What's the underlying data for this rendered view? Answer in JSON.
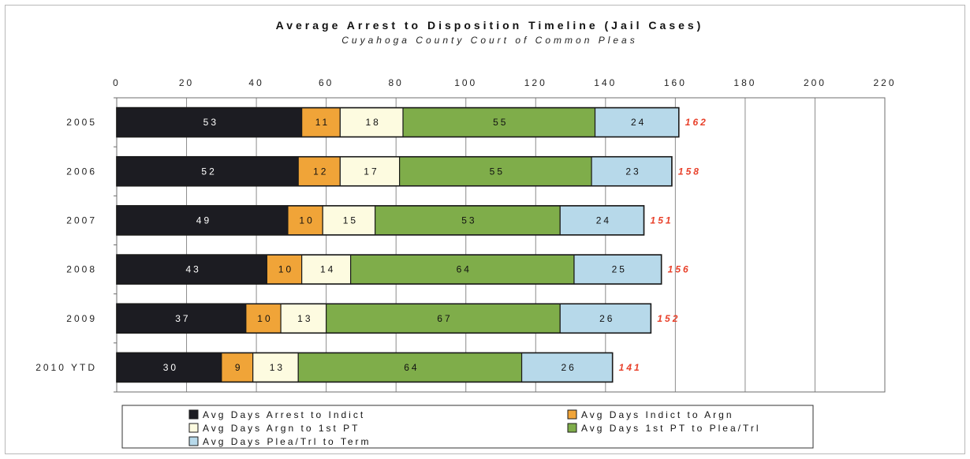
{
  "chart_data": {
    "type": "bar",
    "orientation": "horizontal",
    "stacked": true,
    "title": "Average Arrest to Disposition Timeline (Jail Cases)",
    "subtitle": "Cuyahoga County Court of Common Pleas",
    "xlim": [
      0,
      220
    ],
    "x_ticks": [
      "0",
      "20",
      "40",
      "60",
      "80",
      "100",
      "120",
      "140",
      "160",
      "180",
      "200",
      "220"
    ],
    "grid": true,
    "legend_position": "bottom",
    "categories": [
      "2005",
      "2006",
      "2007",
      "2008",
      "2009",
      "2010 YTD"
    ],
    "series": [
      {
        "name": "Avg Days Arrest to Indict",
        "color": "#1c1c22",
        "label_color": "#ffffff",
        "values": [
          53,
          52,
          49,
          43,
          37,
          30
        ]
      },
      {
        "name": "Avg Days Indict to Argn",
        "color": "#f0a438",
        "label_color": "#111111",
        "values": [
          11,
          12,
          10,
          10,
          10,
          9
        ]
      },
      {
        "name": "Avg Days Argn to 1st PT",
        "color": "#fdfbe0",
        "label_color": "#111111",
        "values": [
          18,
          17,
          15,
          14,
          13,
          13
        ]
      },
      {
        "name": "Avg Days 1st PT to Plea/Trl",
        "color": "#7fad4a",
        "label_color": "#111111",
        "values": [
          55,
          55,
          53,
          64,
          67,
          64
        ]
      },
      {
        "name": "Avg Days Plea/Trl to Term",
        "color": "#b7d9ea",
        "label_color": "#111111",
        "values": [
          24,
          23,
          24,
          25,
          26,
          26
        ]
      }
    ],
    "totals": [
      "162",
      "158",
      "151",
      "156",
      "152",
      "141"
    ],
    "total_color": "#e8402a"
  }
}
